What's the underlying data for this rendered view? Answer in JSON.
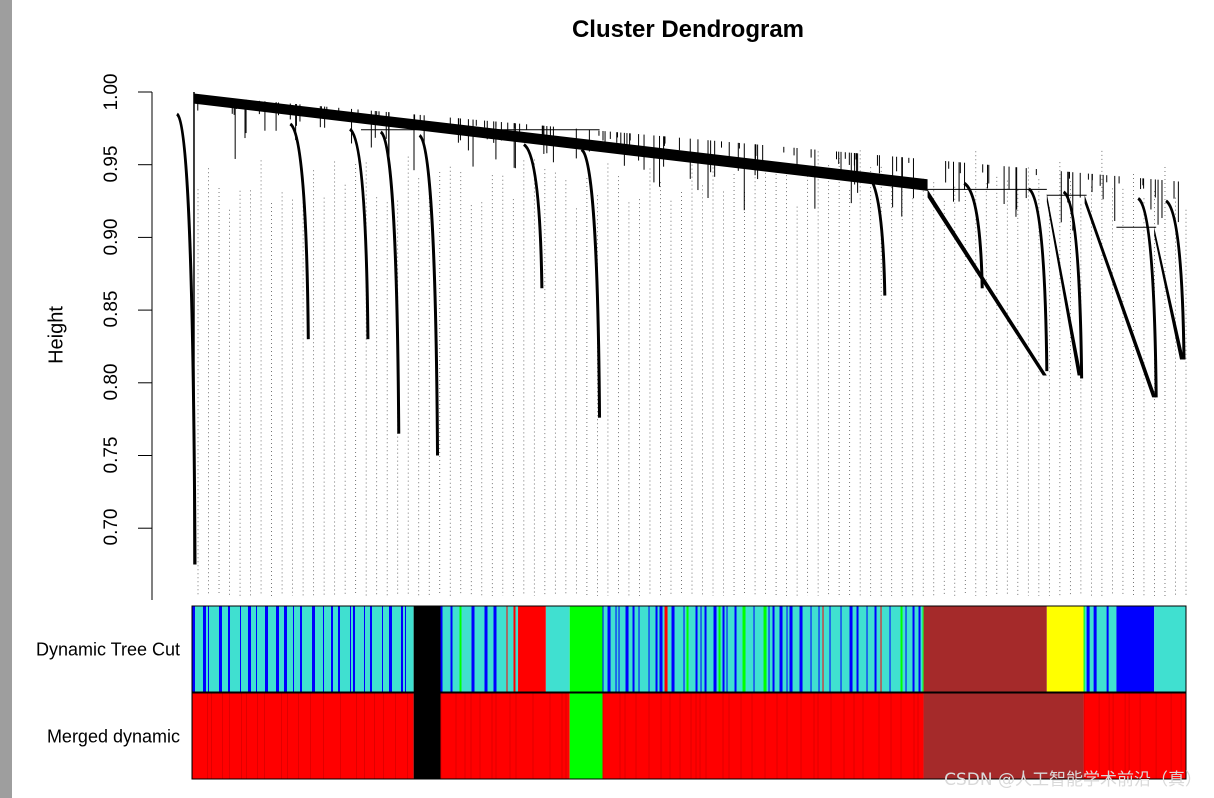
{
  "chart_data": {
    "type": "dendrogram",
    "title": "Cluster Dendrogram",
    "ylabel": "Height",
    "ylim": [
      0.65,
      1.0
    ],
    "yticks": [
      "0.70",
      "0.75",
      "0.80",
      "0.85",
      "0.90",
      "0.95",
      "1.00"
    ],
    "merge_heights": {
      "root": 1.0,
      "main_trunk_start": 0.998,
      "main_trunk_end": 0.94,
      "right_group": 0.933,
      "right_subgroup_1": 0.93,
      "right_subgroup_2": 0.929,
      "right_subgroup_3": 0.907
    },
    "branch_tips": [
      {
        "x": 0.003,
        "y": 0.675
      },
      {
        "x": 0.117,
        "y": 0.83
      },
      {
        "x": 0.177,
        "y": 0.83
      },
      {
        "x": 0.208,
        "y": 0.765
      },
      {
        "x": 0.247,
        "y": 0.75
      },
      {
        "x": 0.352,
        "y": 0.865
      },
      {
        "x": 0.41,
        "y": 0.776
      },
      {
        "x": 0.697,
        "y": 0.86
      },
      {
        "x": 0.795,
        "y": 0.865
      },
      {
        "x": 0.86,
        "y": 0.808
      },
      {
        "x": 0.895,
        "y": 0.803
      },
      {
        "x": 0.97,
        "y": 0.79
      },
      {
        "x": 0.998,
        "y": 0.816
      }
    ],
    "color_rows": [
      {
        "label": "Dynamic Tree Cut",
        "segments": [
          {
            "from": 0.0,
            "to": 0.223,
            "color": "striped-turquoise-blue"
          },
          {
            "from": 0.223,
            "to": 0.25,
            "color": "#000000"
          },
          {
            "from": 0.25,
            "to": 0.328,
            "color": "striped-turquoise-blue"
          },
          {
            "from": 0.328,
            "to": 0.356,
            "color": "#ff0000"
          },
          {
            "from": 0.356,
            "to": 0.38,
            "color": "#40e0d0"
          },
          {
            "from": 0.38,
            "to": 0.413,
            "color": "#00ff00"
          },
          {
            "from": 0.413,
            "to": 0.736,
            "color": "striped-turquoise-blue"
          },
          {
            "from": 0.736,
            "to": 0.86,
            "color": "#a52a2a"
          },
          {
            "from": 0.86,
            "to": 0.897,
            "color": "#ffff00"
          },
          {
            "from": 0.897,
            "to": 0.93,
            "color": "striped-turquoise-blue"
          },
          {
            "from": 0.93,
            "to": 0.968,
            "color": "#0000ff"
          },
          {
            "from": 0.968,
            "to": 1.0,
            "color": "#40e0d0"
          }
        ]
      },
      {
        "label": "Merged dynamic",
        "segments": [
          {
            "from": 0.0,
            "to": 0.223,
            "color": "#ff0000"
          },
          {
            "from": 0.223,
            "to": 0.25,
            "color": "#000000"
          },
          {
            "from": 0.25,
            "to": 0.38,
            "color": "#ff0000"
          },
          {
            "from": 0.38,
            "to": 0.413,
            "color": "#00ff00"
          },
          {
            "from": 0.413,
            "to": 0.736,
            "color": "#ff0000"
          },
          {
            "from": 0.736,
            "to": 0.897,
            "color": "#a52a2a"
          },
          {
            "from": 0.897,
            "to": 1.0,
            "color": "#ff0000"
          }
        ]
      }
    ]
  },
  "watermark": "CSDN @人工智能学术前沿（真）"
}
